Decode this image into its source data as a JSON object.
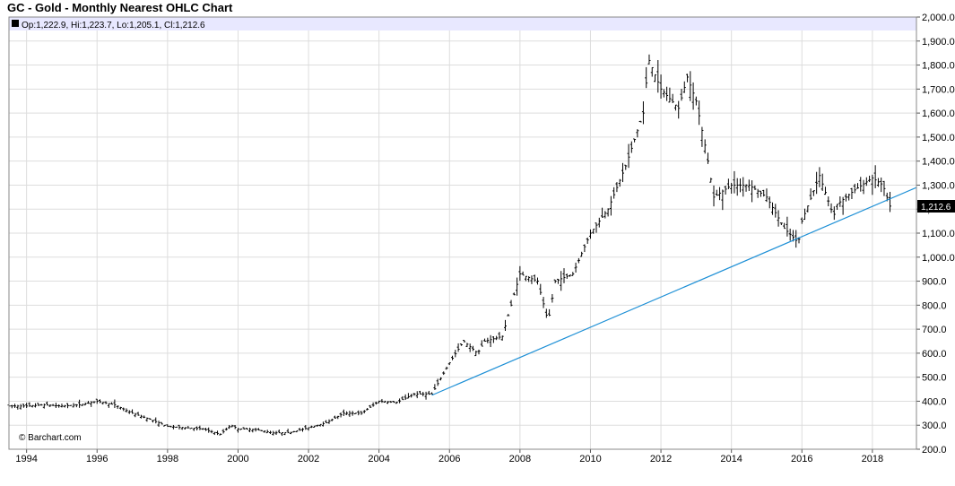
{
  "chart_data": {
    "type": "ohlc",
    "title": "GC - Gold - Monthly Nearest OHLC Chart",
    "info": "Op:1,222.9, Hi:1,223.7, Lo:1,205.1, Cl:1,212.6",
    "last_value_label": "1,212.6",
    "credit": "© Barchart.com",
    "ylim": [
      200,
      2000
    ],
    "y_ticks": [
      "2,000.0",
      "1,900.0",
      "1,800.0",
      "1,700.0",
      "1,600.0",
      "1,500.0",
      "1,400.0",
      "1,300.0",
      "1,200.0",
      "1,100.0",
      "1,000.0",
      "900.0",
      "800.0",
      "700.0",
      "600.0",
      "500.0",
      "400.0",
      "300.0",
      "200.0"
    ],
    "x_ticks": [
      "1994",
      "1996",
      "1998",
      "2000",
      "2002",
      "2004",
      "2006",
      "2008",
      "2010",
      "2012",
      "2014",
      "2016",
      "2018"
    ],
    "x_range": [
      1993.5,
      2019.25
    ],
    "trendline": {
      "from": {
        "date": 2005.5,
        "price": 425
      },
      "to": {
        "date": 2019.25,
        "price": 1290
      }
    },
    "series_points": [
      [
        1994.0,
        380
      ],
      [
        1994.5,
        385
      ],
      [
        1995.0,
        380
      ],
      [
        1995.5,
        385
      ],
      [
        1996.0,
        400
      ],
      [
        1996.5,
        385
      ],
      [
        1997.0,
        350
      ],
      [
        1997.5,
        325
      ],
      [
        1998.0,
        295
      ],
      [
        1998.5,
        290
      ],
      [
        1999.0,
        285
      ],
      [
        1999.5,
        262
      ],
      [
        1999.8,
        300
      ],
      [
        2000.0,
        285
      ],
      [
        2000.5,
        282
      ],
      [
        2001.0,
        268
      ],
      [
        2001.5,
        270
      ],
      [
        2002.0,
        290
      ],
      [
        2002.5,
        310
      ],
      [
        2003.0,
        350
      ],
      [
        2003.5,
        350
      ],
      [
        2004.0,
        400
      ],
      [
        2004.5,
        395
      ],
      [
        2005.0,
        430
      ],
      [
        2005.5,
        430
      ],
      [
        2006.0,
        560
      ],
      [
        2006.4,
        650
      ],
      [
        2006.8,
        600
      ],
      [
        2007.0,
        650
      ],
      [
        2007.5,
        670
      ],
      [
        2008.0,
        930
      ],
      [
        2008.5,
        900
      ],
      [
        2008.8,
        730
      ],
      [
        2009.0,
        900
      ],
      [
        2009.5,
        930
      ],
      [
        2010.0,
        1100
      ],
      [
        2010.5,
        1200
      ],
      [
        2011.0,
        1380
      ],
      [
        2011.5,
        1600
      ],
      [
        2011.65,
        1825
      ],
      [
        2012.0,
        1700
      ],
      [
        2012.5,
        1620
      ],
      [
        2012.75,
        1750
      ],
      [
        2013.0,
        1650
      ],
      [
        2013.3,
        1430
      ],
      [
        2013.5,
        1250
      ],
      [
        2014.0,
        1300
      ],
      [
        2014.5,
        1300
      ],
      [
        2015.0,
        1250
      ],
      [
        2015.5,
        1120
      ],
      [
        2015.9,
        1060
      ],
      [
        2016.0,
        1150
      ],
      [
        2016.5,
        1340
      ],
      [
        2016.9,
        1170
      ],
      [
        2017.0,
        1220
      ],
      [
        2017.5,
        1280
      ],
      [
        2018.0,
        1330
      ],
      [
        2018.3,
        1300
      ],
      [
        2018.5,
        1212.6
      ]
    ],
    "grid": "on",
    "background": "#ffffff",
    "grid_color": "#dddddd",
    "trendline_color": "#1e90d6",
    "info_band_color": "#e8e8ff"
  }
}
